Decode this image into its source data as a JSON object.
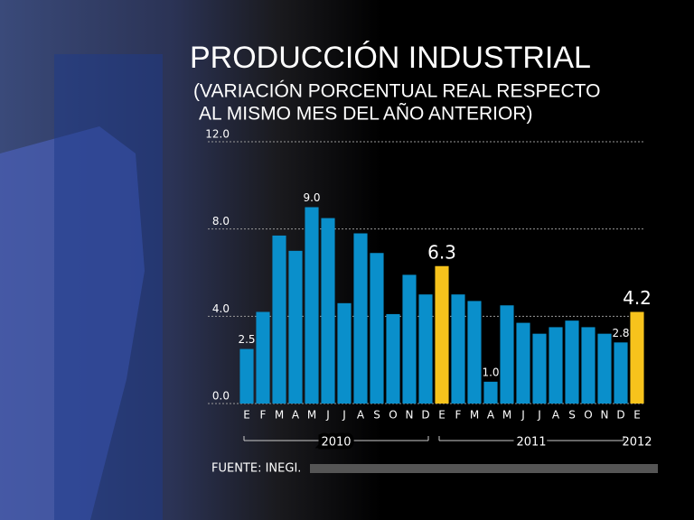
{
  "chart_data": {
    "type": "bar",
    "title": "PRODUCCIÓN INDUSTRIAL",
    "subtitle": [
      "(VARIACIÓN PORCENTUAL REAL RESPECTO",
      "AL MISMO MES DEL AÑO ANTERIOR)"
    ],
    "categories": [
      "E",
      "F",
      "M",
      "A",
      "M",
      "J",
      "J",
      "A",
      "S",
      "O",
      "N",
      "D",
      "E",
      "F",
      "M",
      "A",
      "M",
      "J",
      "J",
      "A",
      "S",
      "O",
      "N",
      "D",
      "E"
    ],
    "years": [
      "2010",
      "2011",
      "2012"
    ],
    "values": [
      2.5,
      4.2,
      7.7,
      7.0,
      9.0,
      8.5,
      4.6,
      7.8,
      6.9,
      4.1,
      5.9,
      5.0,
      6.3,
      5.0,
      4.7,
      1.0,
      4.5,
      3.7,
      3.2,
      3.5,
      3.8,
      3.5,
      3.2,
      2.8,
      4.2
    ],
    "value_labels": [
      "2.5",
      null,
      null,
      null,
      "9.0",
      null,
      null,
      null,
      null,
      null,
      null,
      null,
      "6.3",
      null,
      null,
      "1.0",
      null,
      null,
      null,
      null,
      null,
      null,
      null,
      "2.8",
      "4.2"
    ],
    "colors": [
      "#0a8fcb",
      "#0a8fcb",
      "#0a8fcb",
      "#0a8fcb",
      "#0a8fcb",
      "#0a8fcb",
      "#0a8fcb",
      "#0a8fcb",
      "#0a8fcb",
      "#0a8fcb",
      "#0a8fcb",
      "#0a8fcb",
      "#f7c31c",
      "#0a8fcb",
      "#0a8fcb",
      "#0a8fcb",
      "#0a8fcb",
      "#0a8fcb",
      "#0a8fcb",
      "#0a8fcb",
      "#0a8fcb",
      "#0a8fcb",
      "#0a8fcb",
      "#0a8fcb",
      "#f7c31c"
    ],
    "ylim": [
      0,
      12
    ],
    "yticks": [
      {
        "value": 0,
        "label": "0.0"
      },
      {
        "value": 4,
        "label": "4.0"
      },
      {
        "value": 8,
        "label": "8.0"
      },
      {
        "value": 12,
        "label": "12.0"
      }
    ],
    "grid": true,
    "source": "FUENTE: INEGI."
  }
}
